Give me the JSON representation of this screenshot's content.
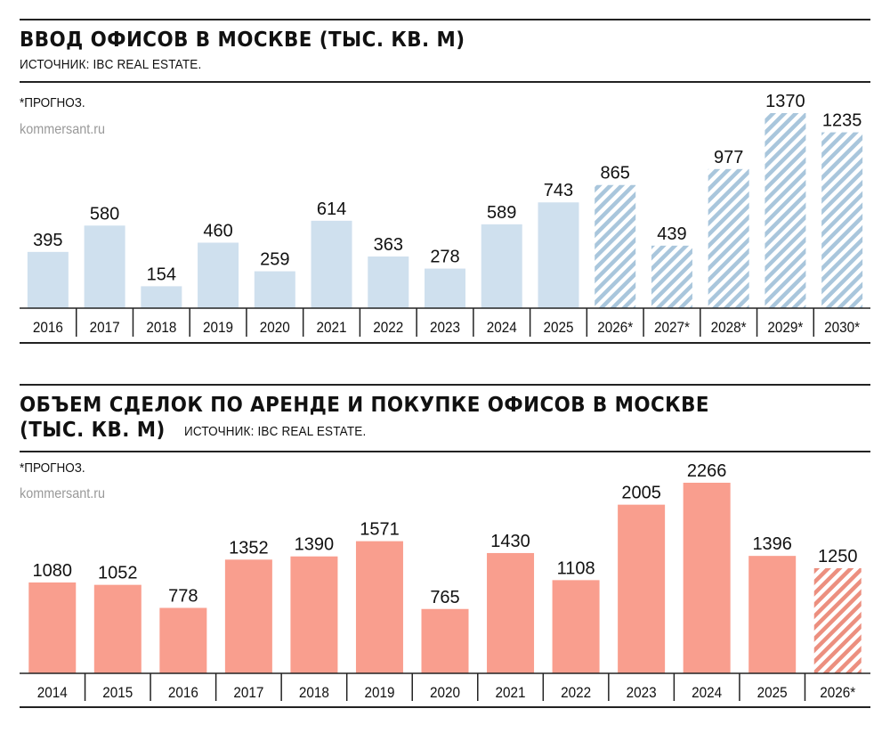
{
  "chart_data": [
    {
      "type": "bar",
      "title": "ВВОД ОФИСОВ В МОСКВЕ (ТЫС. КВ. М)",
      "source": "ИСТОЧНИК: IBC REAL ESTATE.",
      "note": "*ПРОГНОЗ.",
      "watermark": "kommersant.ru",
      "categories": [
        "2016",
        "2017",
        "2018",
        "2019",
        "2020",
        "2021",
        "2022",
        "2023",
        "2024",
        "2025",
        "2026*",
        "2027*",
        "2028*",
        "2029*",
        "2030*"
      ],
      "values": [
        395,
        580,
        154,
        460,
        259,
        614,
        363,
        278,
        589,
        743,
        865,
        439,
        977,
        1370,
        1235
      ],
      "forecast": [
        false,
        false,
        false,
        false,
        false,
        false,
        false,
        false,
        false,
        false,
        true,
        true,
        true,
        true,
        true
      ],
      "color": "#cfe0ee",
      "hatch_color": "#a9c6dc",
      "ylim": [
        0,
        1370
      ],
      "grid": false
    },
    {
      "type": "bar",
      "title_line1": "ОБЪЕМ СДЕЛОК ПО АРЕНДЕ И ПОКУПКЕ ОФИСОВ В МОСКВЕ",
      "title_line2": "(ТЫС. КВ. М)",
      "source": "ИСТОЧНИК: IBC REAL ESTATE.",
      "note": "*ПРОГНОЗ.",
      "watermark": "kommersant.ru",
      "categories": [
        "2014",
        "2015",
        "2016",
        "2017",
        "2018",
        "2019",
        "2020",
        "2021",
        "2022",
        "2023",
        "2024",
        "2025",
        "2026*"
      ],
      "values": [
        1080,
        1052,
        778,
        1352,
        1390,
        1571,
        765,
        1430,
        1108,
        2005,
        2266,
        1396,
        1250
      ],
      "forecast": [
        false,
        false,
        false,
        false,
        false,
        false,
        false,
        false,
        false,
        false,
        false,
        false,
        true
      ],
      "color": "#f99e8e",
      "hatch_color": "#ec8f7f",
      "ylim": [
        0,
        2266
      ],
      "grid": false
    }
  ]
}
